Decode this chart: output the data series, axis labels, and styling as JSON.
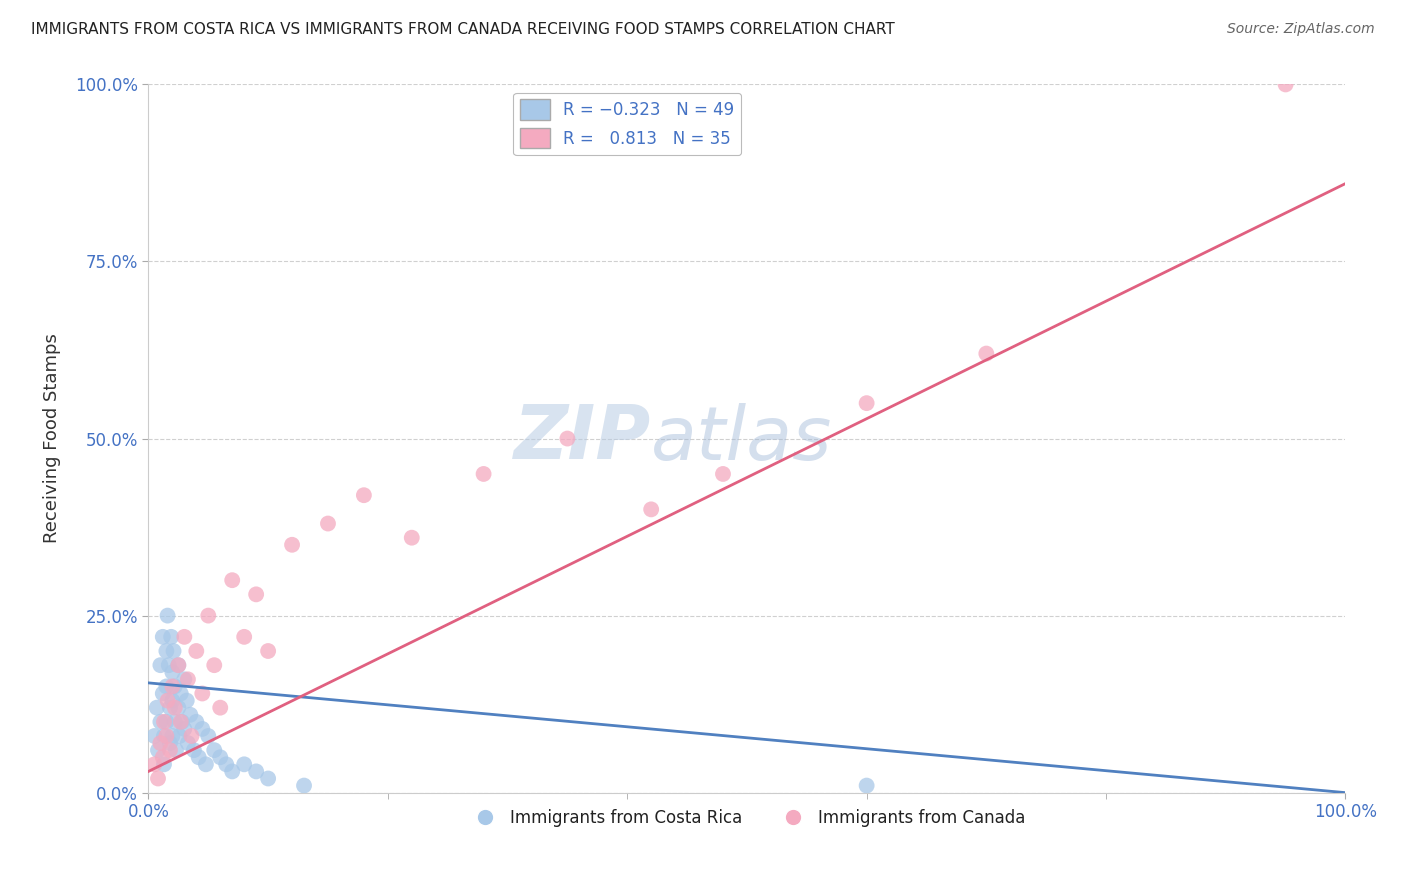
{
  "title": "IMMIGRANTS FROM COSTA RICA VS IMMIGRANTS FROM CANADA RECEIVING FOOD STAMPS CORRELATION CHART",
  "source": "Source: ZipAtlas.com",
  "ylabel": "Receiving Food Stamps",
  "y_tick_labels": [
    "0.0%",
    "25.0%",
    "50.0%",
    "75.0%",
    "100.0%"
  ],
  "y_tick_positions": [
    0.0,
    0.25,
    0.5,
    0.75,
    1.0
  ],
  "watermark_zip": "ZIP",
  "watermark_atlas": "atlas",
  "blue_color": "#a8c8e8",
  "pink_color": "#f4aac0",
  "blue_line_color": "#5080c0",
  "pink_line_color": "#e06080",
  "background_color": "#ffffff",
  "grid_color": "#d0d0d0",
  "blue_line_x0": 0.0,
  "blue_line_y0": 0.155,
  "blue_line_x1": 1.0,
  "blue_line_y1": 0.0,
  "pink_line_x0": 0.0,
  "pink_line_y0": 0.03,
  "pink_line_x1": 1.0,
  "pink_line_y1": 0.86,
  "costa_rica_x": [
    0.005,
    0.007,
    0.008,
    0.01,
    0.01,
    0.012,
    0.012,
    0.013,
    0.013,
    0.015,
    0.015,
    0.015,
    0.016,
    0.017,
    0.018,
    0.018,
    0.019,
    0.02,
    0.02,
    0.02,
    0.021,
    0.022,
    0.022,
    0.023,
    0.025,
    0.025,
    0.026,
    0.027,
    0.028,
    0.03,
    0.03,
    0.032,
    0.033,
    0.035,
    0.038,
    0.04,
    0.042,
    0.045,
    0.048,
    0.05,
    0.055,
    0.06,
    0.065,
    0.07,
    0.08,
    0.09,
    0.1,
    0.13,
    0.6
  ],
  "costa_rica_y": [
    0.08,
    0.12,
    0.06,
    0.18,
    0.1,
    0.22,
    0.14,
    0.08,
    0.04,
    0.2,
    0.15,
    0.1,
    0.25,
    0.18,
    0.12,
    0.07,
    0.22,
    0.17,
    0.13,
    0.08,
    0.2,
    0.15,
    0.1,
    0.06,
    0.18,
    0.12,
    0.08,
    0.14,
    0.1,
    0.16,
    0.09,
    0.13,
    0.07,
    0.11,
    0.06,
    0.1,
    0.05,
    0.09,
    0.04,
    0.08,
    0.06,
    0.05,
    0.04,
    0.03,
    0.04,
    0.03,
    0.02,
    0.01,
    0.01
  ],
  "canada_x": [
    0.005,
    0.008,
    0.01,
    0.012,
    0.013,
    0.015,
    0.016,
    0.018,
    0.02,
    0.022,
    0.025,
    0.027,
    0.03,
    0.033,
    0.036,
    0.04,
    0.045,
    0.05,
    0.055,
    0.06,
    0.07,
    0.08,
    0.09,
    0.1,
    0.12,
    0.15,
    0.18,
    0.22,
    0.28,
    0.35,
    0.42,
    0.48,
    0.6,
    0.7,
    0.95
  ],
  "canada_y": [
    0.04,
    0.02,
    0.07,
    0.05,
    0.1,
    0.08,
    0.13,
    0.06,
    0.15,
    0.12,
    0.18,
    0.1,
    0.22,
    0.16,
    0.08,
    0.2,
    0.14,
    0.25,
    0.18,
    0.12,
    0.3,
    0.22,
    0.28,
    0.2,
    0.35,
    0.38,
    0.42,
    0.36,
    0.45,
    0.5,
    0.4,
    0.45,
    0.55,
    0.62,
    1.0
  ],
  "xlim": [
    0.0,
    1.0
  ],
  "ylim": [
    0.0,
    1.0
  ]
}
